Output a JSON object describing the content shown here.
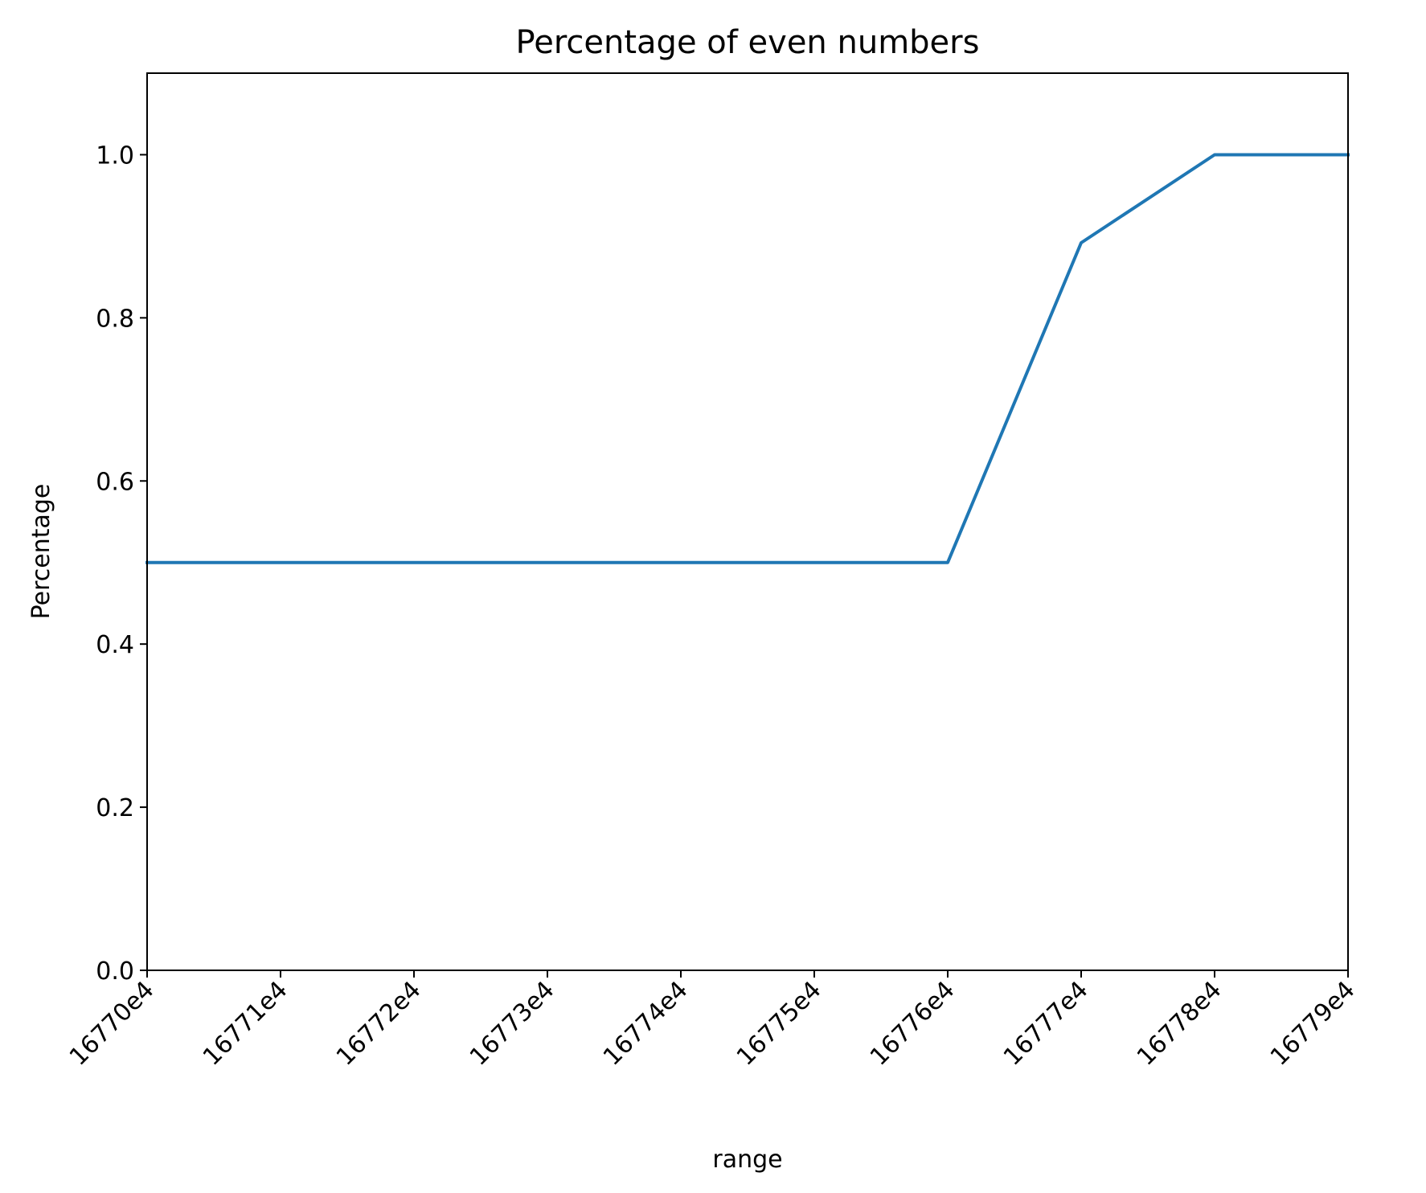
{
  "chart_data": {
    "type": "line",
    "title": "Percentage of even numbers",
    "xlabel": "range",
    "ylabel": "Percentage",
    "x": [
      0,
      1,
      2,
      3,
      4,
      5,
      6,
      7,
      8,
      9
    ],
    "x_tick_labels": [
      "16770e4",
      "16771e4",
      "16772e4",
      "16773e4",
      "16774e4",
      "16775e4",
      "16776e4",
      "16777e4",
      "16778e4",
      "16779e4"
    ],
    "y_ticks": [
      0.0,
      0.2,
      0.4,
      0.6,
      0.8,
      1.0
    ],
    "y_tick_labels": [
      "0.0",
      "0.2",
      "0.4",
      "0.6",
      "0.8",
      "1.0"
    ],
    "series": [
      {
        "values": [
          0.5,
          0.5,
          0.5,
          0.5,
          0.5,
          0.5,
          0.5,
          0.892,
          1.0,
          1.0
        ],
        "color": "#1f77b4"
      }
    ],
    "xlim": [
      0,
      9
    ],
    "ylim": [
      0,
      1.1
    ],
    "grid": false,
    "legend": "none"
  }
}
